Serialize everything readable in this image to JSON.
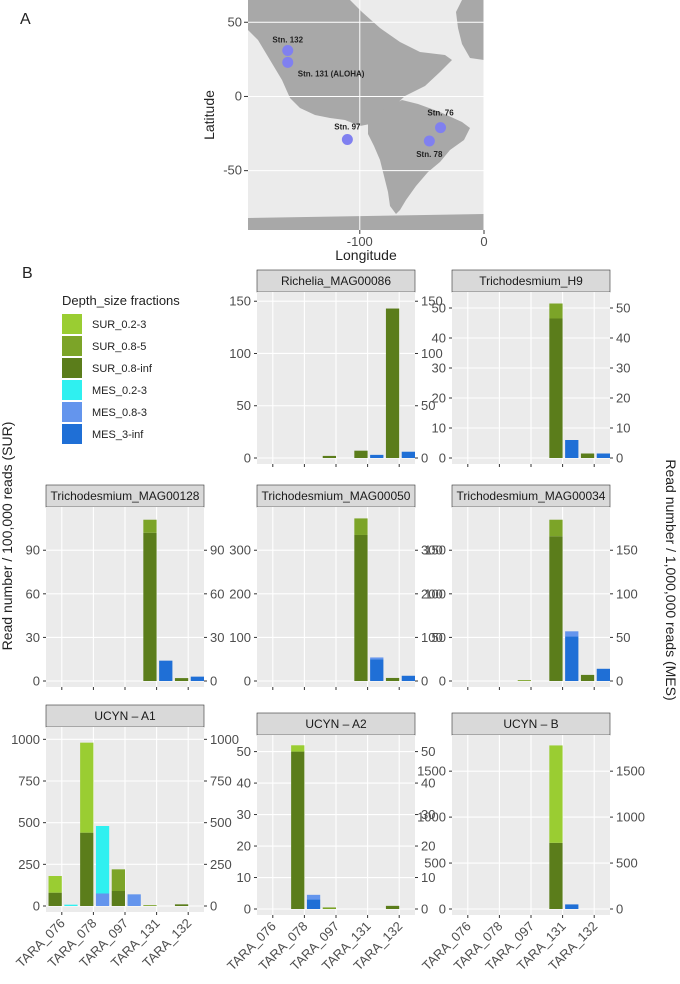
{
  "panel_labels": {
    "a": "A",
    "b": "B"
  },
  "map": {
    "xlabel": "Longitude",
    "ylabel": "Latitude",
    "x_ticks": [
      "-100",
      "0"
    ],
    "y_ticks": [
      "50",
      "0",
      "-50"
    ],
    "x_range": [
      -190,
      0
    ],
    "y_range": [
      -90,
      65
    ],
    "point_color": "#8080f0",
    "stations": [
      {
        "label": "Stn. 132",
        "lon": -158,
        "lat": 31
      },
      {
        "label": "Stn. 131 (ALOHA)",
        "lon": -158,
        "lat": 23
      },
      {
        "label": "Stn. 97",
        "lon": -110,
        "lat": -29
      },
      {
        "label": "Stn. 76",
        "lon": -35,
        "lat": -21
      },
      {
        "label": "Stn. 78",
        "lon": -44,
        "lat": -30
      }
    ]
  },
  "legend": {
    "title": "Depth_size fractions",
    "items": [
      {
        "label": "SUR_0.2-3",
        "color": "#9acd32"
      },
      {
        "label": "SUR_0.8-5",
        "color": "#7ca428"
      },
      {
        "label": "SUR_0.8-inf",
        "color": "#5b7d1b"
      },
      {
        "label": "MES_0.2-3",
        "color": "#2ff0f0"
      },
      {
        "label": "MES_0.8-3",
        "color": "#6495ed"
      },
      {
        "label": "MES_3-inf",
        "color": "#1f6fd6"
      }
    ]
  },
  "axis_titles": {
    "left": "Read number / 100,000 reads (SUR)",
    "right": "Read number / 1,000,000 reads (MES)"
  },
  "chart_data": {
    "type": "bar",
    "stacked": true,
    "categories": [
      "TARA_076",
      "TARA_078",
      "TARA_097",
      "TARA_131",
      "TARA_132"
    ],
    "panels": [
      {
        "title": "Richelia_MAG00086",
        "left_ticks": [
          "0",
          "50",
          "100",
          "150"
        ],
        "right_ticks": [
          "0",
          "50",
          "100",
          "150"
        ],
        "ylim": [
          0,
          155
        ],
        "right_ylim": [
          0,
          155
        ],
        "bars": [
          {
            "category": "TARA_097",
            "layer": "SUR",
            "segments": [
              {
                "fraction": "SUR_0.8-inf",
                "value": 2
              }
            ]
          },
          {
            "category": "TARA_131",
            "layer": "SUR",
            "segments": [
              {
                "fraction": "SUR_0.8-inf",
                "value": 7
              }
            ]
          },
          {
            "category": "TARA_131",
            "layer": "MES",
            "segments": [
              {
                "fraction": "MES_3-inf",
                "value": 3
              }
            ]
          },
          {
            "category": "TARA_132",
            "layer": "SUR",
            "segments": [
              {
                "fraction": "SUR_0.8-inf",
                "value": 143
              }
            ]
          },
          {
            "category": "TARA_132",
            "layer": "MES",
            "segments": [
              {
                "fraction": "MES_3-inf",
                "value": 6
              }
            ]
          }
        ]
      },
      {
        "title": "Trichodesmium_H9",
        "left_ticks": [
          "0",
          "10",
          "20",
          "30",
          "40",
          "50"
        ],
        "right_ticks": [
          "0",
          "10",
          "20",
          "30",
          "40",
          "50"
        ],
        "ylim": [
          0,
          54
        ],
        "right_ylim": [
          0,
          54
        ],
        "bars": [
          {
            "category": "TARA_131",
            "layer": "SUR",
            "segments": [
              {
                "fraction": "SUR_0.8-inf",
                "value": 46.5
              },
              {
                "fraction": "SUR_0.8-5",
                "value": 5
              }
            ]
          },
          {
            "category": "TARA_131",
            "layer": "MES",
            "segments": [
              {
                "fraction": "MES_3-inf",
                "value": 6
              }
            ]
          },
          {
            "category": "TARA_132",
            "layer": "SUR",
            "segments": [
              {
                "fraction": "SUR_0.8-inf",
                "value": 1.5
              }
            ]
          },
          {
            "category": "TARA_132",
            "layer": "MES",
            "segments": [
              {
                "fraction": "MES_3-inf",
                "value": 1.5
              }
            ]
          }
        ]
      },
      {
        "title": "Trichodesmium_MAG00128",
        "left_ticks": [
          "0",
          "30",
          "60",
          "90"
        ],
        "right_ticks": [
          "0",
          "30",
          "60",
          "90"
        ],
        "ylim": [
          0,
          117
        ],
        "right_ylim": [
          0,
          117
        ],
        "bars": [
          {
            "category": "TARA_131",
            "layer": "SUR",
            "segments": [
              {
                "fraction": "SUR_0.8-inf",
                "value": 102
              },
              {
                "fraction": "SUR_0.8-5",
                "value": 9
              }
            ]
          },
          {
            "category": "TARA_131",
            "layer": "MES",
            "segments": [
              {
                "fraction": "MES_3-inf",
                "value": 14
              }
            ]
          },
          {
            "category": "TARA_132",
            "layer": "SUR",
            "segments": [
              {
                "fraction": "SUR_0.8-inf",
                "value": 2
              }
            ]
          },
          {
            "category": "TARA_132",
            "layer": "MES",
            "segments": [
              {
                "fraction": "MES_3-inf",
                "value": 3
              }
            ]
          }
        ]
      },
      {
        "title": "Trichodesmium_MAG00050",
        "left_ticks": [
          "0",
          "100",
          "200",
          "300"
        ],
        "right_ticks": [
          "0",
          "100",
          "200",
          "300"
        ],
        "ylim": [
          0,
          390
        ],
        "right_ylim": [
          0,
          390
        ],
        "bars": [
          {
            "category": "TARA_131",
            "layer": "SUR",
            "segments": [
              {
                "fraction": "SUR_0.8-inf",
                "value": 335
              },
              {
                "fraction": "SUR_0.8-5",
                "value": 38
              }
            ]
          },
          {
            "category": "TARA_131",
            "layer": "MES",
            "segments": [
              {
                "fraction": "MES_3-inf",
                "value": 50
              },
              {
                "fraction": "MES_0.8-3",
                "value": 4
              }
            ]
          },
          {
            "category": "TARA_132",
            "layer": "SUR",
            "segments": [
              {
                "fraction": "SUR_0.8-inf",
                "value": 7
              }
            ]
          },
          {
            "category": "TARA_132",
            "layer": "MES",
            "segments": [
              {
                "fraction": "MES_3-inf",
                "value": 12
              }
            ]
          }
        ]
      },
      {
        "title": "Trichodesmium_MAG00034",
        "left_ticks": [
          "0",
          "50",
          "100",
          "150"
        ],
        "right_ticks": [
          "0",
          "50",
          "100",
          "150"
        ],
        "ylim": [
          0,
          195
        ],
        "right_ylim": [
          0,
          195
        ],
        "bars": [
          {
            "category": "TARA_097",
            "layer": "SUR",
            "segments": [
              {
                "fraction": "SUR_0.8-5",
                "value": 1
              }
            ]
          },
          {
            "category": "TARA_131",
            "layer": "SUR",
            "segments": [
              {
                "fraction": "SUR_0.8-inf",
                "value": 166
              },
              {
                "fraction": "SUR_0.8-5",
                "value": 19
              }
            ]
          },
          {
            "category": "TARA_131",
            "layer": "MES",
            "segments": [
              {
                "fraction": "MES_3-inf",
                "value": 51
              },
              {
                "fraction": "MES_0.8-3",
                "value": 6
              }
            ]
          },
          {
            "category": "TARA_132",
            "layer": "SUR",
            "segments": [
              {
                "fraction": "SUR_0.8-inf",
                "value": 7
              }
            ]
          },
          {
            "category": "TARA_132",
            "layer": "MES",
            "segments": [
              {
                "fraction": "MES_3-inf",
                "value": 14
              }
            ]
          }
        ]
      },
      {
        "title": "UCYN – A1",
        "left_ticks": [
          "0",
          "250",
          "500",
          "750",
          "1000"
        ],
        "right_ticks": [
          "0",
          "250",
          "500",
          "750",
          "1000"
        ],
        "ylim": [
          0,
          1050
        ],
        "right_ylim": [
          0,
          1050
        ],
        "bars": [
          {
            "category": "TARA_076",
            "layer": "SUR",
            "segments": [
              {
                "fraction": "SUR_0.8-inf",
                "value": 80
              },
              {
                "fraction": "SUR_0.2-3",
                "value": 100
              }
            ]
          },
          {
            "category": "TARA_076",
            "layer": "MES",
            "segments": [
              {
                "fraction": "MES_0.2-3",
                "value": 8
              }
            ]
          },
          {
            "category": "TARA_078",
            "layer": "SUR",
            "segments": [
              {
                "fraction": "SUR_0.8-inf",
                "value": 440
              },
              {
                "fraction": "SUR_0.2-3",
                "value": 540
              }
            ]
          },
          {
            "category": "TARA_078",
            "layer": "MES",
            "segments": [
              {
                "fraction": "MES_0.8-3",
                "value": 75
              },
              {
                "fraction": "MES_0.2-3",
                "value": 405
              }
            ]
          },
          {
            "category": "TARA_097",
            "layer": "SUR",
            "segments": [
              {
                "fraction": "SUR_0.8-inf",
                "value": 90
              },
              {
                "fraction": "SUR_0.8-5",
                "value": 130
              }
            ]
          },
          {
            "category": "TARA_097",
            "layer": "MES",
            "segments": [
              {
                "fraction": "MES_0.8-3",
                "value": 70
              }
            ]
          },
          {
            "category": "TARA_131",
            "layer": "SUR",
            "segments": [
              {
                "fraction": "SUR_0.8-5",
                "value": 5
              }
            ]
          },
          {
            "category": "TARA_132",
            "layer": "SUR",
            "segments": [
              {
                "fraction": "SUR_0.8-inf",
                "value": 10
              }
            ]
          }
        ]
      },
      {
        "title": "UCYN – A2",
        "left_ticks": [
          "0",
          "10",
          "20",
          "30",
          "40",
          "50"
        ],
        "right_ticks": [
          "0",
          "10",
          "20",
          "30",
          "40",
          "50"
        ],
        "ylim": [
          0,
          54
        ],
        "right_ylim": [
          0,
          54
        ],
        "bars": [
          {
            "category": "TARA_078",
            "layer": "SUR",
            "segments": [
              {
                "fraction": "SUR_0.8-inf",
                "value": 50
              },
              {
                "fraction": "SUR_0.2-3",
                "value": 2
              }
            ]
          },
          {
            "category": "TARA_078",
            "layer": "MES",
            "segments": [
              {
                "fraction": "MES_3-inf",
                "value": 3
              },
              {
                "fraction": "MES_0.8-3",
                "value": 1.5
              }
            ]
          },
          {
            "category": "TARA_097",
            "layer": "SUR",
            "segments": [
              {
                "fraction": "SUR_0.8-5",
                "value": 0.5
              }
            ]
          },
          {
            "category": "TARA_132",
            "layer": "SUR",
            "segments": [
              {
                "fraction": "SUR_0.8-inf",
                "value": 1
              }
            ]
          }
        ]
      },
      {
        "title": "UCYN – B",
        "left_ticks": [
          "0",
          "500",
          "1000",
          "1500"
        ],
        "right_ticks": [
          "0",
          "500",
          "1000",
          "1500"
        ],
        "ylim": [
          0,
          1850
        ],
        "right_ylim": [
          0,
          1850
        ],
        "bars": [
          {
            "category": "TARA_131",
            "layer": "SUR",
            "segments": [
              {
                "fraction": "SUR_0.8-inf",
                "value": 720
              },
              {
                "fraction": "SUR_0.2-3",
                "value": 1060
              }
            ]
          },
          {
            "category": "TARA_131",
            "layer": "MES",
            "segments": [
              {
                "fraction": "MES_3-inf",
                "value": 50
              }
            ]
          }
        ]
      }
    ]
  }
}
